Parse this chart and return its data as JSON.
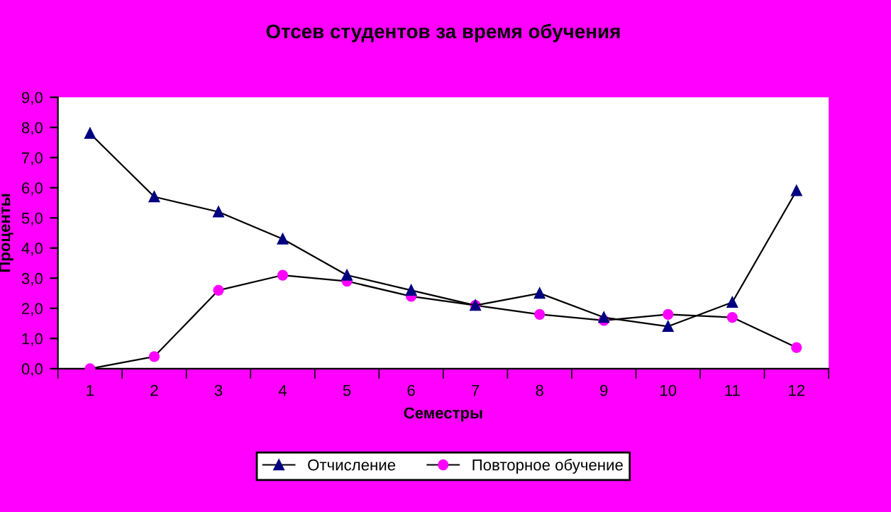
{
  "chart_data": {
    "type": "line",
    "title": "Отсев студентов за время обучения",
    "xlabel": "Семестры",
    "ylabel": "Проценты",
    "categories": [
      "1",
      "2",
      "3",
      "4",
      "5",
      "6",
      "7",
      "8",
      "9",
      "10",
      "11",
      "12"
    ],
    "series": [
      {
        "name": "Отчисление",
        "color": "#000080",
        "marker": "triangle",
        "values": [
          7.8,
          5.7,
          5.2,
          4.3,
          3.1,
          2.6,
          2.1,
          2.5,
          1.7,
          1.4,
          2.2,
          5.9
        ]
      },
      {
        "name": "Повторное обучение",
        "color": "#ff00ff",
        "marker": "circle",
        "values": [
          0.0,
          0.4,
          2.6,
          3.1,
          2.9,
          2.4,
          2.1,
          1.8,
          1.6,
          1.8,
          1.7,
          0.7
        ]
      }
    ],
    "ylim": [
      0,
      9
    ],
    "yticks": [
      {
        "value": 0,
        "label": "0,0"
      },
      {
        "value": 1,
        "label": "1,0"
      },
      {
        "value": 2,
        "label": "2,0"
      },
      {
        "value": 3,
        "label": "3,0"
      },
      {
        "value": 4,
        "label": "4,0"
      },
      {
        "value": 5,
        "label": "5,0"
      },
      {
        "value": 6,
        "label": "6,0"
      },
      {
        "value": 7,
        "label": "7,0"
      },
      {
        "value": 8,
        "label": "8,0"
      },
      {
        "value": 9,
        "label": "9,0"
      }
    ],
    "grid": false,
    "legend": "bottom",
    "line_style": "solid"
  }
}
